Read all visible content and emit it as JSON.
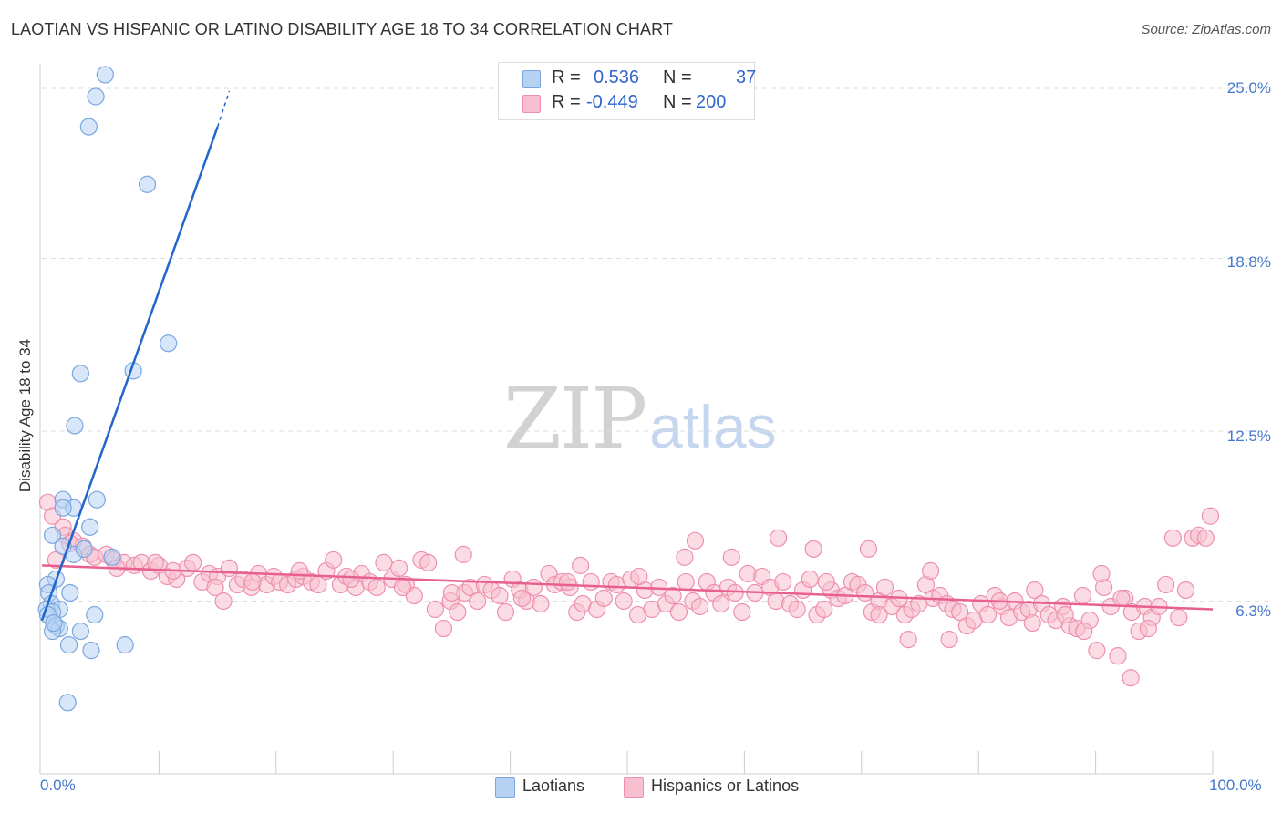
{
  "title": "LAOTIAN VS HISPANIC OR LATINO DISABILITY AGE 18 TO 34 CORRELATION CHART",
  "source": "Source: ZipAtlas.com",
  "watermark": {
    "zip": "ZIP",
    "atlas": "atlas"
  },
  "legend": {
    "r_label": "R =",
    "n_label": "N =",
    "series": [
      {
        "r": "0.536",
        "n": "37"
      },
      {
        "r": "-0.449",
        "n": "200"
      }
    ]
  },
  "colors": {
    "laotian_fill": "#b7d1f2",
    "laotian_stroke": "#7aa6df",
    "laotian_line": "#2266cc",
    "hispanic_fill": "#f7bfd0",
    "hispanic_stroke": "#ee90ad",
    "hispanic_line": "#e8608d",
    "grid": "#dddddd",
    "tick_label": "#4477cc"
  },
  "chart_data": {
    "type": "scatter",
    "title": "LAOTIAN VS HISPANIC OR LATINO DISABILITY AGE 18 TO 34 CORRELATION CHART",
    "xlabel": "",
    "ylabel": "Disability Age 18 to 34",
    "xlim": [
      0,
      100
    ],
    "ylim": [
      0,
      25.9
    ],
    "y_ticks": [
      6.3,
      12.5,
      18.8,
      25.0
    ],
    "y_tick_labels": [
      "6.3%",
      "12.5%",
      "18.8%",
      "25.0%"
    ],
    "x_tick_labels": [
      "0.0%",
      "100.0%"
    ],
    "grid": true,
    "legend_position": "top-center",
    "series": [
      {
        "name": "Laotians",
        "r": 0.536,
        "n": 37,
        "trend": {
          "x0": 0.0,
          "y0": 5.6,
          "x1": 15.0,
          "y1": 23.6,
          "dashed_to_x": 16.0,
          "dashed_to_y": 24.9
        },
        "points": [
          [
            5.4,
            25.5
          ],
          [
            4.6,
            24.7
          ],
          [
            4.0,
            23.6
          ],
          [
            9.0,
            21.5
          ],
          [
            10.8,
            15.7
          ],
          [
            7.8,
            14.7
          ],
          [
            3.3,
            14.6
          ],
          [
            2.8,
            12.7
          ],
          [
            1.8,
            10.0
          ],
          [
            4.7,
            10.0
          ],
          [
            2.7,
            9.7
          ],
          [
            1.8,
            9.7
          ],
          [
            4.1,
            9.0
          ],
          [
            0.9,
            8.7
          ],
          [
            1.8,
            8.3
          ],
          [
            2.7,
            8.0
          ],
          [
            6.0,
            7.9
          ],
          [
            3.6,
            8.2
          ],
          [
            1.2,
            7.1
          ],
          [
            0.5,
            6.9
          ],
          [
            0.6,
            6.6
          ],
          [
            2.4,
            6.6
          ],
          [
            0.8,
            6.2
          ],
          [
            1.5,
            6.0
          ],
          [
            0.4,
            6.0
          ],
          [
            0.9,
            5.9
          ],
          [
            0.5,
            5.8
          ],
          [
            4.5,
            5.8
          ],
          [
            1.2,
            5.4
          ],
          [
            1.5,
            5.3
          ],
          [
            0.9,
            5.2
          ],
          [
            3.3,
            5.2
          ],
          [
            2.3,
            4.7
          ],
          [
            7.1,
            4.7
          ],
          [
            4.2,
            4.5
          ],
          [
            2.2,
            2.6
          ],
          [
            1.0,
            5.5
          ]
        ]
      },
      {
        "name": "Hispanics or Latinos",
        "r": -0.449,
        "n": 200,
        "trend": {
          "x0": 0.0,
          "y0": 7.6,
          "x1": 100.0,
          "y1": 6.0
        },
        "points": [
          [
            0.5,
            9.9
          ],
          [
            0.9,
            9.4
          ],
          [
            1.8,
            9.0
          ],
          [
            2.0,
            8.7
          ],
          [
            2.7,
            8.5
          ],
          [
            3.5,
            8.3
          ],
          [
            4.1,
            8.0
          ],
          [
            4.5,
            7.9
          ],
          [
            5.5,
            8.0
          ],
          [
            6.1,
            7.8
          ],
          [
            7.0,
            7.7
          ],
          [
            7.9,
            7.6
          ],
          [
            8.5,
            7.7
          ],
          [
            9.3,
            7.4
          ],
          [
            10.0,
            7.6
          ],
          [
            10.7,
            7.2
          ],
          [
            11.5,
            7.1
          ],
          [
            12.4,
            7.5
          ],
          [
            12.9,
            7.7
          ],
          [
            13.7,
            7.0
          ],
          [
            14.3,
            7.3
          ],
          [
            15.0,
            7.2
          ],
          [
            15.5,
            6.3
          ],
          [
            16.0,
            7.5
          ],
          [
            16.7,
            6.9
          ],
          [
            17.2,
            7.1
          ],
          [
            17.9,
            6.8
          ],
          [
            18.5,
            7.3
          ],
          [
            19.2,
            6.9
          ],
          [
            19.8,
            7.2
          ],
          [
            20.3,
            7.0
          ],
          [
            21.0,
            6.9
          ],
          [
            21.7,
            7.1
          ],
          [
            22.3,
            7.2
          ],
          [
            23.0,
            7.0
          ],
          [
            23.6,
            6.9
          ],
          [
            24.3,
            7.4
          ],
          [
            24.9,
            7.8
          ],
          [
            25.5,
            6.9
          ],
          [
            26.0,
            7.2
          ],
          [
            26.8,
            6.8
          ],
          [
            27.3,
            7.3
          ],
          [
            28.0,
            7.0
          ],
          [
            28.6,
            6.8
          ],
          [
            29.2,
            7.7
          ],
          [
            29.9,
            7.1
          ],
          [
            30.5,
            7.5
          ],
          [
            31.1,
            6.9
          ],
          [
            31.8,
            6.5
          ],
          [
            32.4,
            7.8
          ],
          [
            33.0,
            7.7
          ],
          [
            33.6,
            6.0
          ],
          [
            34.3,
            5.3
          ],
          [
            34.9,
            6.3
          ],
          [
            35.5,
            5.9
          ],
          [
            36.1,
            6.6
          ],
          [
            36.6,
            6.8
          ],
          [
            37.2,
            6.3
          ],
          [
            37.8,
            6.9
          ],
          [
            38.4,
            6.7
          ],
          [
            39.1,
            6.5
          ],
          [
            39.6,
            5.9
          ],
          [
            40.2,
            7.1
          ],
          [
            40.8,
            6.7
          ],
          [
            41.4,
            6.3
          ],
          [
            42.0,
            6.8
          ],
          [
            42.6,
            6.2
          ],
          [
            43.3,
            7.3
          ],
          [
            43.8,
            6.9
          ],
          [
            44.4,
            7.0
          ],
          [
            45.1,
            6.8
          ],
          [
            45.7,
            5.9
          ],
          [
            46.2,
            6.2
          ],
          [
            46.9,
            7.0
          ],
          [
            47.4,
            6.0
          ],
          [
            48.0,
            6.4
          ],
          [
            48.6,
            7.0
          ],
          [
            49.1,
            6.9
          ],
          [
            49.7,
            6.3
          ],
          [
            50.3,
            7.1
          ],
          [
            50.9,
            5.8
          ],
          [
            51.5,
            6.7
          ],
          [
            52.1,
            6.0
          ],
          [
            52.7,
            6.8
          ],
          [
            53.3,
            6.2
          ],
          [
            53.9,
            6.5
          ],
          [
            54.4,
            5.9
          ],
          [
            55.0,
            7.0
          ],
          [
            55.6,
            6.3
          ],
          [
            56.2,
            6.1
          ],
          [
            56.8,
            7.0
          ],
          [
            57.4,
            6.6
          ],
          [
            58.0,
            6.2
          ],
          [
            58.6,
            6.8
          ],
          [
            59.2,
            6.6
          ],
          [
            59.8,
            5.9
          ],
          [
            60.3,
            7.3
          ],
          [
            60.9,
            6.6
          ],
          [
            61.5,
            7.2
          ],
          [
            62.2,
            6.8
          ],
          [
            62.7,
            6.3
          ],
          [
            63.3,
            7.0
          ],
          [
            63.9,
            6.2
          ],
          [
            64.5,
            6.0
          ],
          [
            65.0,
            6.7
          ],
          [
            65.6,
            7.1
          ],
          [
            66.2,
            5.8
          ],
          [
            66.8,
            6.0
          ],
          [
            67.4,
            6.7
          ],
          [
            68.0,
            6.4
          ],
          [
            68.6,
            6.5
          ],
          [
            69.2,
            7.0
          ],
          [
            69.7,
            6.9
          ],
          [
            70.3,
            6.6
          ],
          [
            70.9,
            5.9
          ],
          [
            71.5,
            6.3
          ],
          [
            72.0,
            6.8
          ],
          [
            72.6,
            6.1
          ],
          [
            73.2,
            6.4
          ],
          [
            73.7,
            5.8
          ],
          [
            74.3,
            6.0
          ],
          [
            74.9,
            6.2
          ],
          [
            75.5,
            6.9
          ],
          [
            76.1,
            6.4
          ],
          [
            76.7,
            6.5
          ],
          [
            77.3,
            6.2
          ],
          [
            77.8,
            6.0
          ],
          [
            78.4,
            5.9
          ],
          [
            79.0,
            5.4
          ],
          [
            79.6,
            5.6
          ],
          [
            80.2,
            6.2
          ],
          [
            80.8,
            5.8
          ],
          [
            81.4,
            6.5
          ],
          [
            82.0,
            6.1
          ],
          [
            82.6,
            5.7
          ],
          [
            83.1,
            6.3
          ],
          [
            83.7,
            5.9
          ],
          [
            84.3,
            6.0
          ],
          [
            84.8,
            6.7
          ],
          [
            85.4,
            6.2
          ],
          [
            86.0,
            5.8
          ],
          [
            86.6,
            5.6
          ],
          [
            87.2,
            6.1
          ],
          [
            87.8,
            5.4
          ],
          [
            88.4,
            5.3
          ],
          [
            88.9,
            6.5
          ],
          [
            89.5,
            5.6
          ],
          [
            90.1,
            4.5
          ],
          [
            90.7,
            6.8
          ],
          [
            91.3,
            6.1
          ],
          [
            91.9,
            4.3
          ],
          [
            92.5,
            6.4
          ],
          [
            93.1,
            5.9
          ],
          [
            93.7,
            5.2
          ],
          [
            94.2,
            6.1
          ],
          [
            94.8,
            5.7
          ],
          [
            95.4,
            6.1
          ],
          [
            96.0,
            6.9
          ],
          [
            96.6,
            8.6
          ],
          [
            97.1,
            5.7
          ],
          [
            97.7,
            6.7
          ],
          [
            98.3,
            8.6
          ],
          [
            98.8,
            8.7
          ],
          [
            99.4,
            8.6
          ],
          [
            99.8,
            9.4
          ],
          [
            1.2,
            7.8
          ],
          [
            2.4,
            8.4
          ],
          [
            6.4,
            7.5
          ],
          [
            9.7,
            7.7
          ],
          [
            11.2,
            7.4
          ],
          [
            14.8,
            6.8
          ],
          [
            18.0,
            7.0
          ],
          [
            22.0,
            7.4
          ],
          [
            26.4,
            7.1
          ],
          [
            30.8,
            6.8
          ],
          [
            35.0,
            6.6
          ],
          [
            41.0,
            6.4
          ],
          [
            44.9,
            7.0
          ],
          [
            51.0,
            7.2
          ],
          [
            54.9,
            7.9
          ],
          [
            58.9,
            7.9
          ],
          [
            62.9,
            8.6
          ],
          [
            65.9,
            8.2
          ],
          [
            70.6,
            8.2
          ],
          [
            75.9,
            7.4
          ],
          [
            81.8,
            6.3
          ],
          [
            87.4,
            5.8
          ],
          [
            90.5,
            7.3
          ],
          [
            92.2,
            6.4
          ],
          [
            94.5,
            5.3
          ],
          [
            36.0,
            8.0
          ],
          [
            46.0,
            7.6
          ],
          [
            55.8,
            8.5
          ],
          [
            67.0,
            7.0
          ],
          [
            71.5,
            5.8
          ],
          [
            77.5,
            4.9
          ],
          [
            84.6,
            5.5
          ],
          [
            89.0,
            5.2
          ],
          [
            93.0,
            3.5
          ],
          [
            74.0,
            4.9
          ]
        ]
      }
    ]
  },
  "axis": {
    "ylabel": "Disability Age 18 to 34",
    "y_ticks": [
      "25.0%",
      "18.8%",
      "12.5%",
      "6.3%"
    ],
    "x_left": "0.0%",
    "x_right": "100.0%"
  },
  "bottom_legend": [
    "Laotians",
    "Hispanics or Latinos"
  ]
}
